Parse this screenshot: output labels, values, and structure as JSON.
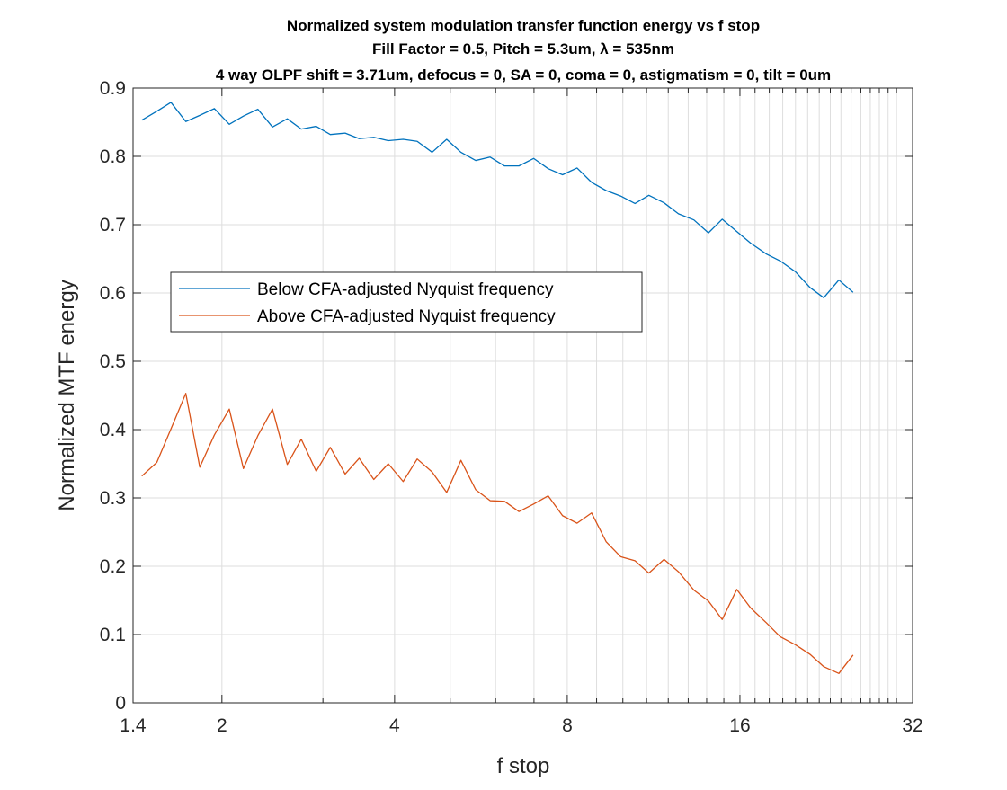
{
  "chart_data": {
    "type": "line",
    "title": [
      "Normalized system modulation transfer function energy vs f stop",
      "Fill Factor = 0.5, Pitch = 5.3um, λ = 535nm",
      "4 way OLPF shift = 3.71um, defocus = 0, SA = 0, coma = 0, astigmatism = 0, tilt = 0um"
    ],
    "xlabel": "f stop",
    "ylabel": "Normalized MTF energy",
    "xscale": "log2",
    "xlim": [
      1.4,
      32
    ],
    "ylim": [
      0,
      0.9
    ],
    "xticks": [
      1.4,
      2,
      4,
      8,
      16,
      32
    ],
    "xtick_labels": [
      "1.4",
      "2",
      "4",
      "8",
      "16",
      "32"
    ],
    "yticks": [
      0,
      0.1,
      0.2,
      0.3,
      0.4,
      0.5,
      0.6,
      0.7,
      0.8,
      0.9
    ],
    "ytick_labels": [
      "0",
      "0.1",
      "0.2",
      "0.3",
      "0.4",
      "0.5",
      "0.6",
      "0.7",
      "0.8",
      "0.9"
    ],
    "grid": true,
    "legend_position": "upper-left",
    "x": [
      1.45,
      1.54,
      1.63,
      1.73,
      1.83,
      1.94,
      2.06,
      2.18,
      2.31,
      2.45,
      2.6,
      2.75,
      2.92,
      3.09,
      3.28,
      3.47,
      3.68,
      3.9,
      4.14,
      4.38,
      4.65,
      4.93,
      5.22,
      5.54,
      5.87,
      6.22,
      6.59,
      6.99,
      7.41,
      7.85,
      8.32,
      8.82,
      9.35,
      9.91,
      10.5,
      11.1,
      11.8,
      12.5,
      13.3,
      14.1,
      14.9,
      15.8,
      16.7,
      17.8,
      18.8,
      20.0,
      21.2,
      22.4,
      23.8,
      25.2
    ],
    "series": [
      {
        "name": "Below CFA-adjusted Nyquist frequency",
        "color": "#0072BD",
        "values": [
          0.853,
          0.866,
          0.879,
          0.851,
          0.86,
          0.87,
          0.847,
          0.859,
          0.869,
          0.843,
          0.855,
          0.84,
          0.844,
          0.832,
          0.834,
          0.826,
          0.828,
          0.823,
          0.825,
          0.822,
          0.806,
          0.825,
          0.806,
          0.794,
          0.799,
          0.786,
          0.786,
          0.797,
          0.782,
          0.773,
          0.783,
          0.762,
          0.75,
          0.742,
          0.731,
          0.743,
          0.732,
          0.716,
          0.707,
          0.688,
          0.708,
          0.69,
          0.673,
          0.657,
          0.647,
          0.631,
          0.608,
          0.593,
          0.619,
          0.601
        ]
      },
      {
        "name": "Above CFA-adjusted Nyquist frequency",
        "color": "#D95319",
        "values": [
          0.332,
          0.352,
          0.401,
          0.453,
          0.345,
          0.392,
          0.43,
          0.343,
          0.391,
          0.43,
          0.349,
          0.386,
          0.339,
          0.374,
          0.335,
          0.358,
          0.327,
          0.35,
          0.324,
          0.357,
          0.338,
          0.308,
          0.355,
          0.312,
          0.296,
          0.295,
          0.28,
          0.291,
          0.303,
          0.274,
          0.263,
          0.278,
          0.236,
          0.214,
          0.208,
          0.19,
          0.21,
          0.192,
          0.165,
          0.149,
          0.122,
          0.166,
          0.139,
          0.117,
          0.097,
          0.085,
          0.071,
          0.053,
          0.043,
          0.07
        ]
      }
    ]
  }
}
